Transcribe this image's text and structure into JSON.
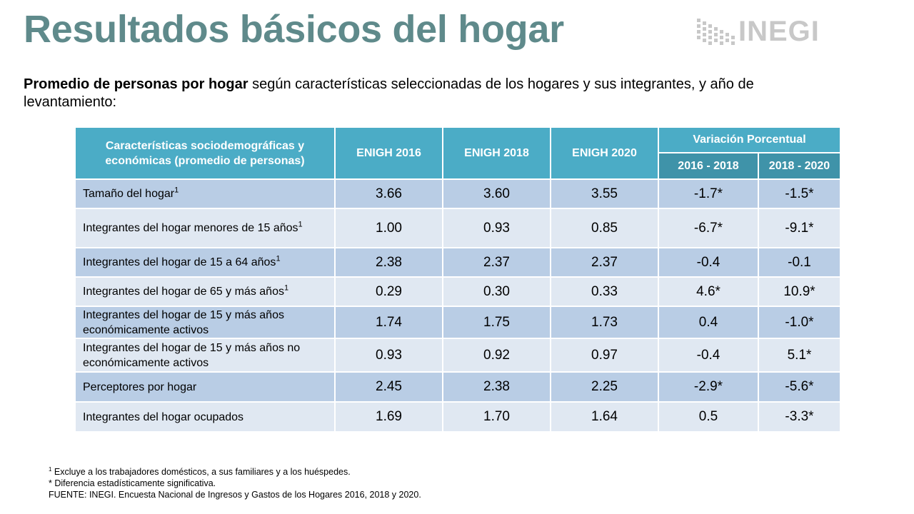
{
  "title": "Resultados básicos del hogar",
  "logo": {
    "text": "INEGI",
    "icon": "inegi-dots-logo"
  },
  "subtitle": {
    "bold": "Promedio de personas por hogar",
    "rest": " según características seleccionadas de los hogares y sus integrantes, y año de levantamiento:"
  },
  "table": {
    "headers": {
      "characteristics": "Características sociodemográficas y económicas (promedio de personas)",
      "enigh2016": "ENIGH 2016",
      "enigh2018": "ENIGH 2018",
      "enigh2020": "ENIGH 2020",
      "variation": "Variación Porcentual",
      "var1618": "2016 - 2018",
      "var1820": "2018 - 2020"
    },
    "rows": [
      {
        "label": "Tamaño del hogar",
        "sup": "1",
        "v2016": "3.66",
        "v2018": "3.60",
        "v2020": "3.55",
        "var1618": "-1.7*",
        "var1820": "-1.5*"
      },
      {
        "label": "Integrantes del hogar menores de 15 años",
        "sup": "1",
        "v2016": "1.00",
        "v2018": "0.93",
        "v2020": "0.85",
        "var1618": "-6.7*",
        "var1820": "-9.1*"
      },
      {
        "label": "Integrantes del hogar de 15 a 64 años",
        "sup": "1",
        "v2016": "2.38",
        "v2018": "2.37",
        "v2020": "2.37",
        "var1618": "-0.4",
        "var1820": "-0.1"
      },
      {
        "label": "Integrantes del hogar de 65 y más años",
        "sup": "1",
        "v2016": "0.29",
        "v2018": "0.30",
        "v2020": "0.33",
        "var1618": "4.6*",
        "var1820": "10.9*"
      },
      {
        "label": "Integrantes del hogar de 15 y más años económicamente activos",
        "sup": "",
        "v2016": "1.74",
        "v2018": "1.75",
        "v2020": "1.73",
        "var1618": "0.4",
        "var1820": "-1.0*"
      },
      {
        "label": "Integrantes del hogar de 15 y más años no económicamente activos",
        "sup": "",
        "v2016": "0.93",
        "v2018": "0.92",
        "v2020": "0.97",
        "var1618": "-0.4",
        "var1820": "5.1*"
      },
      {
        "label": "Perceptores por hogar",
        "sup": "",
        "v2016": "2.45",
        "v2018": "2.38",
        "v2020": "2.25",
        "var1618": "-2.9*",
        "var1820": "-5.6*"
      },
      {
        "label": "Integrantes del hogar ocupados",
        "sup": "",
        "v2016": "1.69",
        "v2018": "1.70",
        "v2020": "1.64",
        "var1618": "0.5",
        "var1820": "-3.3*"
      }
    ]
  },
  "notes": {
    "note1_sup": "1",
    "note1": " Excluye a los trabajadores domésticos, a sus familiares y a los huéspedes.",
    "note2": "* Diferencia estadísticamente significativa.",
    "source": "FUENTE: INEGI.  Encuesta Nacional de Ingresos y Gastos de los Hogares 2016, 2018 y 2020."
  },
  "colors": {
    "title": "#5f8a8b",
    "header": "#4bacc6",
    "header_sub": "#3f93a9",
    "row_dark": "#b9cde5",
    "row_light": "#e0e8f2",
    "logo": "#c8c8c8"
  }
}
